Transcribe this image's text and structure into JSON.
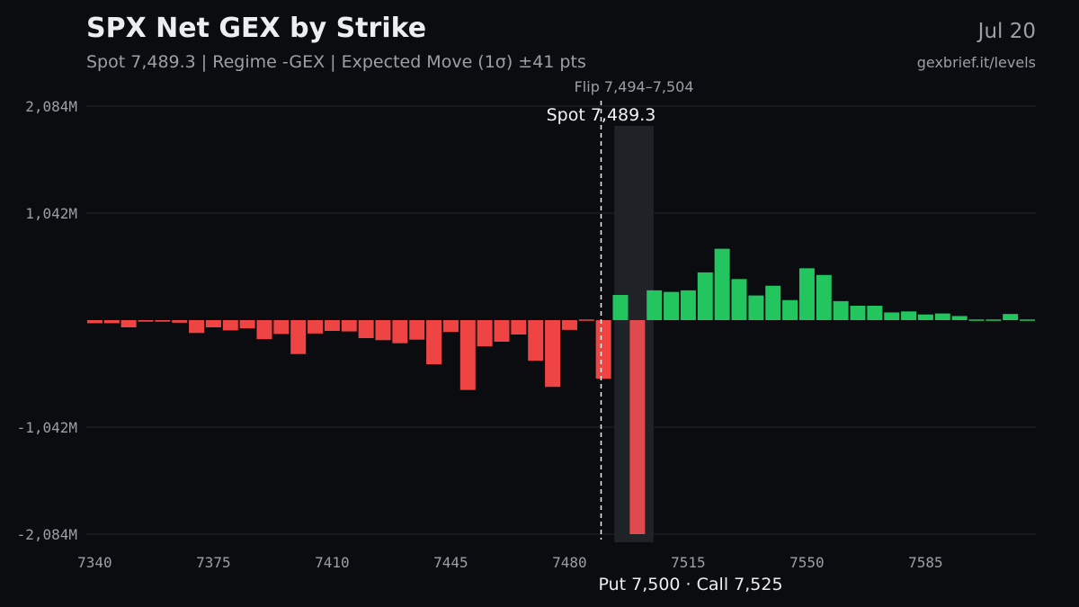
{
  "header": {
    "title": "SPX Net GEX by Strike",
    "subtitle": "Spot 7,489.3 | Regime -GEX | Expected Move (1σ) ±41 pts",
    "date": "Jul 20",
    "source": "gexbrief.it/levels"
  },
  "footer": {
    "levels_note": "Put 7,500 · Call 7,525"
  },
  "chart_data": {
    "type": "bar",
    "title": "SPX Net GEX by Strike",
    "xlabel": "",
    "ylabel": "",
    "x_tick_labels": [
      "7340",
      "7375",
      "7410",
      "7445",
      "7480",
      "7515",
      "7550",
      "7585"
    ],
    "y_tick_labels": [
      "2,084M",
      "1,042M",
      "-1,042M",
      "-2,084M"
    ],
    "ylim": [
      -2084,
      2084
    ],
    "grid": true,
    "colors": {
      "positive": "#22c55e",
      "negative": "#ef4444",
      "background": "#0b0c0f",
      "flip_zone": "#1f2227"
    },
    "spot": {
      "value": 7489.3,
      "label": "Spot 7,489.3"
    },
    "flip_zone": {
      "range": [
        7494,
        7504
      ],
      "label": "Flip 7,494–7,504"
    },
    "strikes": [
      7340,
      7345,
      7350,
      7355,
      7360,
      7365,
      7370,
      7375,
      7380,
      7385,
      7390,
      7395,
      7400,
      7405,
      7410,
      7415,
      7420,
      7425,
      7430,
      7435,
      7440,
      7445,
      7450,
      7455,
      7460,
      7465,
      7470,
      7475,
      7480,
      7485,
      7490,
      7495,
      7500,
      7505,
      7510,
      7515,
      7520,
      7525,
      7530,
      7535,
      7540,
      7545,
      7550,
      7555,
      7560,
      7565,
      7570,
      7575,
      7580,
      7585,
      7590,
      7595,
      7600,
      7605,
      7610,
      7615
    ],
    "values": [
      -30,
      -30,
      -70,
      -15,
      -15,
      -25,
      -125,
      -70,
      -100,
      -80,
      -185,
      -135,
      -330,
      -130,
      -105,
      -110,
      -175,
      -195,
      -225,
      -190,
      -430,
      -115,
      -680,
      -255,
      -210,
      -140,
      -395,
      -650,
      -95,
      -5,
      -570,
      245,
      -2084,
      290,
      275,
      290,
      465,
      695,
      400,
      240,
      335,
      195,
      505,
      440,
      185,
      140,
      140,
      75,
      85,
      55,
      65,
      40,
      10,
      10,
      60,
      0
    ]
  }
}
